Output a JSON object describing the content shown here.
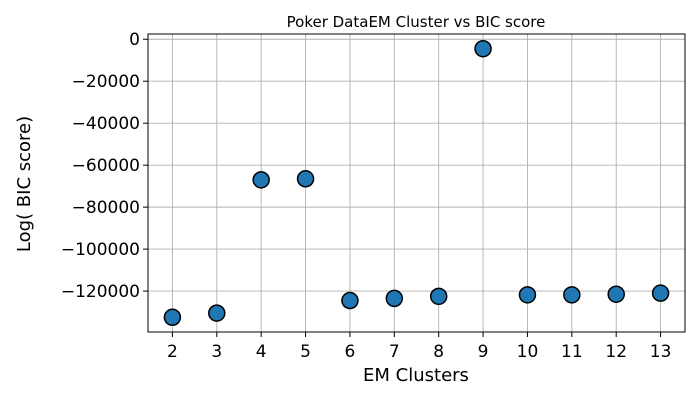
{
  "chart_data": {
    "type": "scatter",
    "title": "Poker DataEM Cluster vs BIC score",
    "xlabel": "EM Clusters",
    "ylabel": "Log( BIC score)",
    "x": [
      2,
      3,
      4,
      5,
      6,
      7,
      8,
      9,
      10,
      11,
      12,
      13
    ],
    "y": [
      -132500,
      -130500,
      -67000,
      -66500,
      -124500,
      -123500,
      -122500,
      -4500,
      -121800,
      -121800,
      -121500,
      -121000
    ],
    "xticks": [
      2,
      3,
      4,
      5,
      6,
      7,
      8,
      9,
      10,
      11,
      12,
      13
    ],
    "yticks": [
      0,
      -20000,
      -40000,
      -60000,
      -80000,
      -100000,
      -120000
    ],
    "ytick_labels": [
      "0",
      "−20000",
      "−40000",
      "−60000",
      "−80000",
      "−100000",
      "−120000"
    ],
    "xlim": [
      1.45,
      13.55
    ],
    "ylim": [
      -139500,
      2500
    ],
    "grid": true,
    "marker_color": "#1f77b4",
    "marker_edge_color": "#000000"
  }
}
